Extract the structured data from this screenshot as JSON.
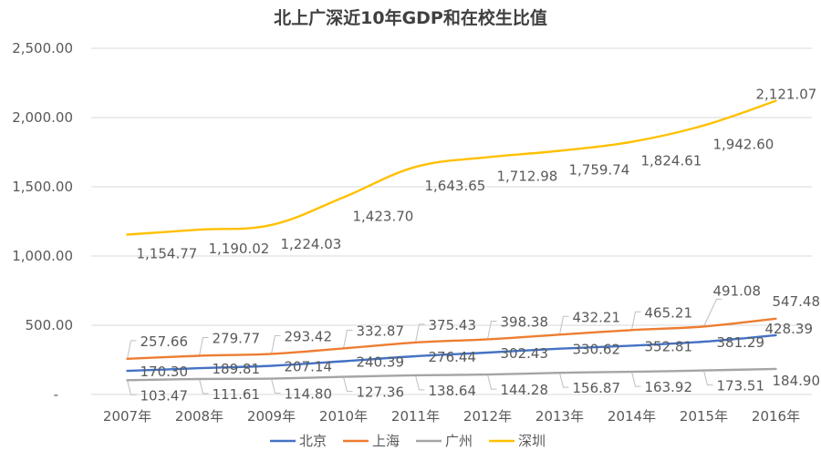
{
  "chart_data": {
    "type": "line",
    "title": "北上广深近10年GDP和在校生比值",
    "xlabel": "",
    "ylabel": "",
    "categories": [
      "2007年",
      "2008年",
      "2009年",
      "2010年",
      "2011年",
      "2012年",
      "2013年",
      "2014年",
      "2015年",
      "2016年"
    ],
    "ylim": [
      0,
      2500
    ],
    "yticks": [
      0,
      500,
      1000,
      1500,
      2000,
      2500
    ],
    "ytick_labels": [
      "-",
      "500.00",
      "1,000.00",
      "1,500.00",
      "2,000.00",
      "2,500.00"
    ],
    "grid": true,
    "legend_position": "bottom",
    "series": [
      {
        "name": "北京",
        "color": "#4472c4",
        "values": [
          170.3,
          189.81,
          207.14,
          240.39,
          276.44,
          302.43,
          330.62,
          352.81,
          381.29,
          428.39
        ],
        "labels": [
          "170.30",
          "189.81",
          "207.14",
          "240.39",
          "276.44",
          "302.43",
          "330.62",
          "352.81",
          "381.29",
          "428.39"
        ]
      },
      {
        "name": "上海",
        "color": "#ed7d31",
        "values": [
          257.66,
          279.77,
          293.42,
          332.87,
          375.43,
          398.38,
          432.21,
          465.21,
          491.08,
          547.48
        ],
        "labels": [
          "257.66",
          "279.77",
          "293.42",
          "332.87",
          "375.43",
          "398.38",
          "432.21",
          "465.21",
          "491.08",
          "547.48"
        ]
      },
      {
        "name": "广州",
        "color": "#a5a5a5",
        "values": [
          103.47,
          111.61,
          114.8,
          127.36,
          138.64,
          144.28,
          156.87,
          163.92,
          173.51,
          184.9
        ],
        "labels": [
          "103.47",
          "111.61",
          "114.80",
          "127.36",
          "138.64",
          "144.28",
          "156.87",
          "163.92",
          "173.51",
          "184.90"
        ]
      },
      {
        "name": "深圳",
        "color": "#ffc000",
        "values": [
          1154.77,
          1190.02,
          1224.03,
          1423.7,
          1643.65,
          1712.98,
          1759.74,
          1824.61,
          1942.6,
          2121.07
        ],
        "labels": [
          "1,154.77",
          "1,190.02",
          "1,224.03",
          "1,423.70",
          "1,643.65",
          "1,712.98",
          "1,759.74",
          "1,824.61",
          "1,942.60",
          "2,121.07"
        ]
      }
    ]
  }
}
